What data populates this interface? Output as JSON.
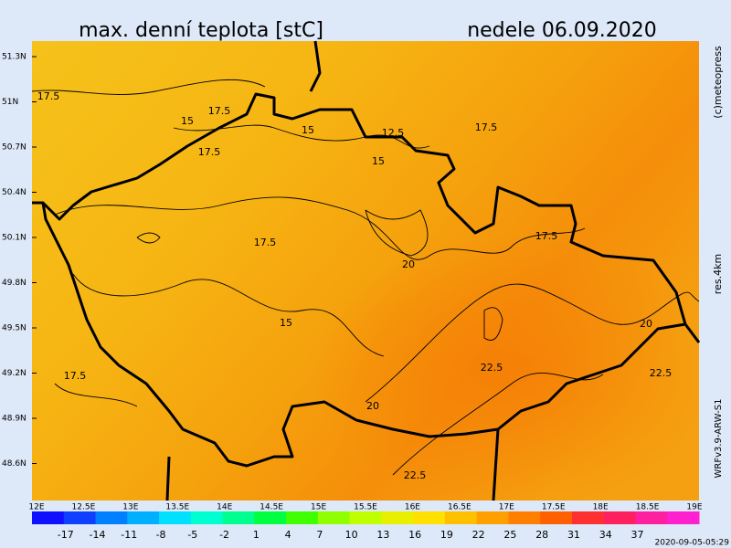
{
  "header": {
    "title": "max. denní teplota [stC]",
    "date": "nedele 06.09.2020"
  },
  "side": {
    "copyright": "(c)meteopress",
    "resolution": "res.4km",
    "model": "WRFv3.9-ARW-S1"
  },
  "footer": {
    "timestamp": "2020-09-05-05:29"
  },
  "map": {
    "lat_labels": [
      "51.3N",
      "51N",
      "50.7N",
      "50.4N",
      "50.1N",
      "49.8N",
      "49.5N",
      "49.2N",
      "48.9N",
      "48.6N"
    ],
    "lon_labels": [
      "12E",
      "12.5E",
      "13E",
      "13.5E",
      "14E",
      "14.5E",
      "15E",
      "15.5E",
      "16E",
      "16.5E",
      "17E",
      "17.5E",
      "18E",
      "18.5E",
      "19E"
    ],
    "contour_labels": [
      "17.5",
      "17.5",
      "15",
      "15",
      "12.5",
      "17.5",
      "17.5",
      "15",
      "17.5",
      "17.5",
      "20",
      "15",
      "20",
      "17.5",
      "22.5",
      "22.5",
      "20",
      "22.5"
    ]
  },
  "colorbar": {
    "labels": [
      -17,
      -14,
      -11,
      -8,
      -5,
      -2,
      1,
      4,
      7,
      10,
      13,
      16,
      19,
      22,
      25,
      28,
      31,
      34,
      37
    ]
  }
}
